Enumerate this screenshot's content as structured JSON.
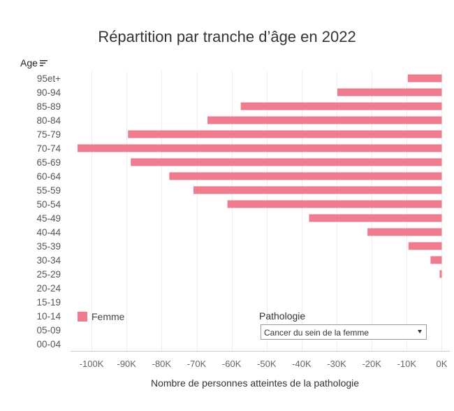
{
  "title": "Répartition par tranche d’âge en 2022",
  "age_header": "Age",
  "legend": {
    "label": "Femme",
    "color": "#ef7b8e"
  },
  "filter": {
    "label": "Pathologie",
    "value": "Cancer du sein de la femme"
  },
  "chart_data": {
    "type": "bar",
    "orientation": "horizontal",
    "title": "Répartition par tranche d’âge en 2022",
    "ylabel": "Age",
    "xlabel": "Nombre de  personnes atteintes de la pathologie",
    "categories": [
      "95et+",
      "90-94",
      "85-89",
      "80-84",
      "75-79",
      "70-74",
      "65-69",
      "60-64",
      "55-59",
      "50-54",
      "45-49",
      "40-44",
      "35-39",
      "30-34",
      "25-29",
      "20-24",
      "15-19",
      "10-14",
      "05-09",
      "00-04"
    ],
    "series": [
      {
        "name": "Femme",
        "color": "#ef7b8e",
        "values": [
          -9700,
          -29800,
          -57400,
          -66900,
          -89600,
          -104000,
          -88800,
          -77800,
          -70900,
          -61200,
          -37900,
          -21200,
          -9500,
          -3200,
          -600,
          0,
          0,
          0,
          0,
          0
        ]
      }
    ],
    "xlim": [
      -106000,
      1500
    ],
    "xticks": [
      -100000,
      -90000,
      -80000,
      -70000,
      -60000,
      -50000,
      -40000,
      -30000,
      -20000,
      -10000,
      0
    ],
    "xtick_labels": [
      "-100K",
      "-90K",
      "-80K",
      "-70K",
      "-60K",
      "-50K",
      "-40K",
      "-30K",
      "-20K",
      "-10K",
      "0K"
    ],
    "grid": true,
    "legend_position": "bottom-left"
  }
}
